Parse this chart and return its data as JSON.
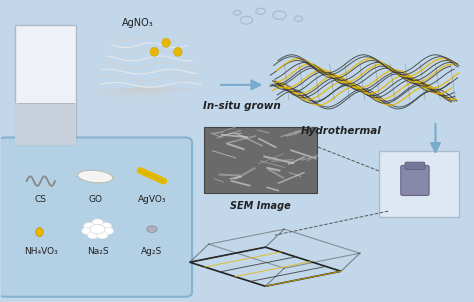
{
  "bg_color": "#c2d8ea",
  "figsize": [
    4.74,
    3.02
  ],
  "dpi": 100,
  "labels": {
    "in_situ": "In-situ grown",
    "hydrothermal": "Hydrothermal",
    "sem": "SEM Image",
    "agno3": "AgNO₃"
  },
  "reagent_labels": [
    "CS",
    "GO",
    "AgVO₃",
    "NH₄VO₃",
    "Na₂S",
    "Ag₂S"
  ],
  "box_color": "#b0cfe4",
  "box_edge": "#7aaac8",
  "arrow_color": "#7aabcc",
  "dashed_color": "#555555",
  "yellow_color": "#e8b800",
  "dark_color": "#222222",
  "container_facecolor": "#dde8f2",
  "container_edgecolor": "#aabbcc",
  "vial_color": "#8888aa",
  "sem_color": "#787878",
  "bubble_color": "#aabbcc"
}
